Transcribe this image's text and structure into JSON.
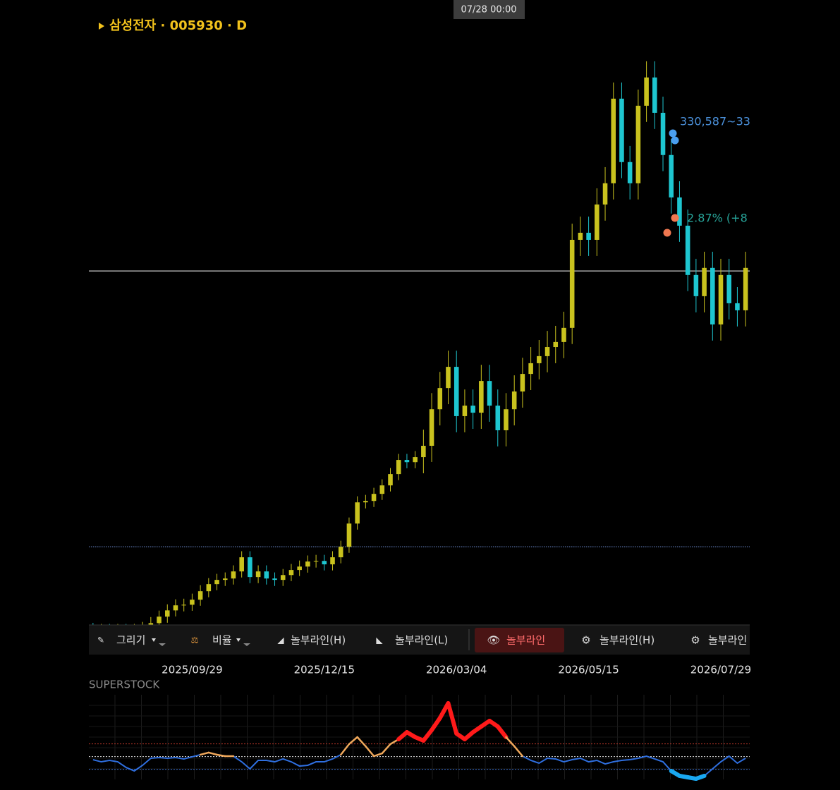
{
  "chart_data": [
    {
      "type": "candlestick",
      "title": "삼성전자 · 005930 · D",
      "crosshair_label": "07/28 00:00",
      "annotations": [
        {
          "text": "330,587~33",
          "color": "#4a8fd8"
        },
        {
          "text": "2.87% (+8",
          "color": "#27a59a"
        }
      ],
      "categories": [
        null,
        null,
        null,
        null,
        null,
        null,
        null,
        null,
        null,
        null,
        null,
        null,
        "2025/09/29",
        null,
        null,
        null,
        null,
        null,
        null,
        null,
        null,
        null,
        null,
        null,
        null,
        null,
        null,
        null,
        "2025/12/15",
        null,
        null,
        null,
        null,
        null,
        null,
        null,
        null,
        null,
        null,
        null,
        null,
        null,
        null,
        null,
        "2026/03/04",
        null,
        null,
        null,
        null,
        null,
        null,
        null,
        null,
        null,
        null,
        null,
        null,
        null,
        null,
        null,
        "2026/05/15",
        null,
        null,
        null,
        null,
        null,
        null,
        null,
        null,
        null,
        null,
        null,
        null,
        null,
        null,
        null,
        "2026/07/29",
        null,
        null,
        null
      ],
      "open": [
        79500,
        79000,
        79000,
        78600,
        79000,
        78300,
        79000,
        80000,
        82400,
        85600,
        88700,
        91200,
        91500,
        94000,
        98200,
        101700,
        103800,
        104500,
        108000,
        115000,
        105200,
        108000,
        104500,
        103800,
        106200,
        108700,
        110400,
        112900,
        113200,
        111500,
        115000,
        120200,
        131700,
        142200,
        142900,
        146400,
        150600,
        156200,
        163200,
        162100,
        164600,
        170200,
        188300,
        198800,
        209300,
        184900,
        190100,
        186600,
        202300,
        190100,
        177900,
        188300,
        197100,
        205800,
        211100,
        214600,
        219100,
        221600,
        228600,
        272200,
        275700,
        272200,
        289700,
        300200,
        342100,
        310700,
        300200,
        338600,
        352600,
        335100,
        314200,
        293200,
        279200,
        254800,
        244300,
        258300,
        230300,
        254800,
        240800,
        237300
      ],
      "high": [
        82500,
        82000,
        82000,
        82000,
        82000,
        82000,
        83000,
        85400,
        88600,
        91700,
        94200,
        94500,
        97000,
        101200,
        104700,
        106800,
        107500,
        111000,
        118000,
        118000,
        111000,
        111000,
        107500,
        109200,
        111700,
        113400,
        115900,
        116200,
        116200,
        118000,
        123200,
        134700,
        145200,
        145900,
        149400,
        153600,
        159200,
        166200,
        166200,
        167600,
        178200,
        196300,
        206800,
        217300,
        217300,
        198100,
        198100,
        210300,
        210300,
        198100,
        196300,
        205100,
        213800,
        219100,
        222600,
        227100,
        229600,
        236600,
        280200,
        283700,
        283700,
        297700,
        308200,
        350100,
        350100,
        318700,
        346600,
        360600,
        360600,
        343100,
        322200,
        301200,
        287200,
        262800,
        266300,
        266300,
        262800,
        262800,
        248800,
        266300
      ],
      "low": [
        76000,
        76000,
        75600,
        75600,
        75300,
        75300,
        76000,
        77000,
        79400,
        82600,
        85700,
        88200,
        88500,
        91000,
        95200,
        98700,
        100800,
        101500,
        105000,
        102200,
        102200,
        101500,
        100800,
        100800,
        103200,
        105700,
        107400,
        109900,
        108500,
        108500,
        112000,
        117200,
        128700,
        139200,
        139900,
        143400,
        147600,
        153200,
        159100,
        159100,
        156600,
        162200,
        180300,
        190800,
        176900,
        176900,
        178600,
        178600,
        182100,
        169900,
        169900,
        180300,
        189100,
        197800,
        203100,
        206600,
        211100,
        213600,
        220600,
        264200,
        264200,
        264200,
        281700,
        292200,
        302700,
        292200,
        292200,
        330600,
        327100,
        306200,
        285200,
        271200,
        246800,
        236300,
        236300,
        222300,
        222300,
        232800,
        229300,
        229300
      ],
      "close": [
        79000,
        79000,
        78600,
        79000,
        78300,
        79000,
        80000,
        82400,
        85600,
        88700,
        91200,
        91500,
        94000,
        98200,
        101700,
        103800,
        104500,
        108000,
        115000,
        105200,
        108000,
        104500,
        103800,
        106200,
        108700,
        110400,
        112900,
        113200,
        111500,
        115000,
        120200,
        131700,
        142200,
        142900,
        146400,
        150600,
        156200,
        163200,
        162100,
        164600,
        170200,
        188300,
        198800,
        209300,
        184900,
        190100,
        186600,
        202300,
        190100,
        177900,
        188300,
        197100,
        205800,
        211100,
        214600,
        219100,
        221600,
        228600,
        272200,
        275700,
        272200,
        289700,
        300200,
        342100,
        310700,
        300200,
        338600,
        352600,
        335100,
        314200,
        293200,
        279200,
        254800,
        244300,
        258300,
        230300,
        254800,
        240800,
        237300,
        258300
      ],
      "up_color": "#c9c21e",
      "down_color": "#1ec6d0",
      "ylim": [
        78000,
        370000
      ],
      "hlines": [
        {
          "value": 256800,
          "color": "#ffffff",
          "style": "solid"
        },
        {
          "value": 120200,
          "color": "#6f8fd6",
          "style": "dotted"
        }
      ]
    },
    {
      "type": "line",
      "title": "SUPERSTOCK",
      "values": [
        23.3,
        20.8,
        22.5,
        20.8,
        14.2,
        10.0,
        16.7,
        25.0,
        25.8,
        25.0,
        25.8,
        24.2,
        26.7,
        29.2,
        31.7,
        29.2,
        27.5,
        27.5,
        20.8,
        12.5,
        22.5,
        22.5,
        20.8,
        24.2,
        20.8,
        15.8,
        16.7,
        20.8,
        20.8,
        24.2,
        29.2,
        41.7,
        50.0,
        39.2,
        27.5,
        30.8,
        41.7,
        47.5,
        55.8,
        50.0,
        45.8,
        58.3,
        72.5,
        90.0,
        54.2,
        47.5,
        55.8,
        62.5,
        69.2,
        62.5,
        50.0,
        39.2,
        27.5,
        22.5,
        19.2,
        25.0,
        24.2,
        20.8,
        23.3,
        25.0,
        20.8,
        22.5,
        18.3,
        20.8,
        22.5,
        23.3,
        25.0,
        27.5,
        24.2,
        20.8,
        10.0,
        4.2,
        2.5,
        0.8,
        4.2,
        12.5,
        20.8,
        27.5,
        19.2,
        25.0
      ],
      "color": "#2f6fe0",
      "high_color": "#ff1a1a",
      "mid_color": "#f0a85a",
      "low_color": "#1aa8f0",
      "ylim": [
        0,
        100
      ],
      "levels": [
        {
          "value": 42,
          "color": "#c0392b"
        },
        {
          "value": 27,
          "color": "#dddddd"
        },
        {
          "value": 12,
          "color": "#3a6fd0"
        }
      ]
    }
  ],
  "toolbar": [
    {
      "label": "그리기"
    },
    {
      "label": "비율"
    },
    {
      "label": "놀부라인(H)"
    },
    {
      "label": "놀부라인(L)"
    },
    {
      "label": "놀부라인",
      "active": true
    },
    {
      "label": "놀부라인(H)"
    },
    {
      "label": "놀부라인"
    }
  ]
}
